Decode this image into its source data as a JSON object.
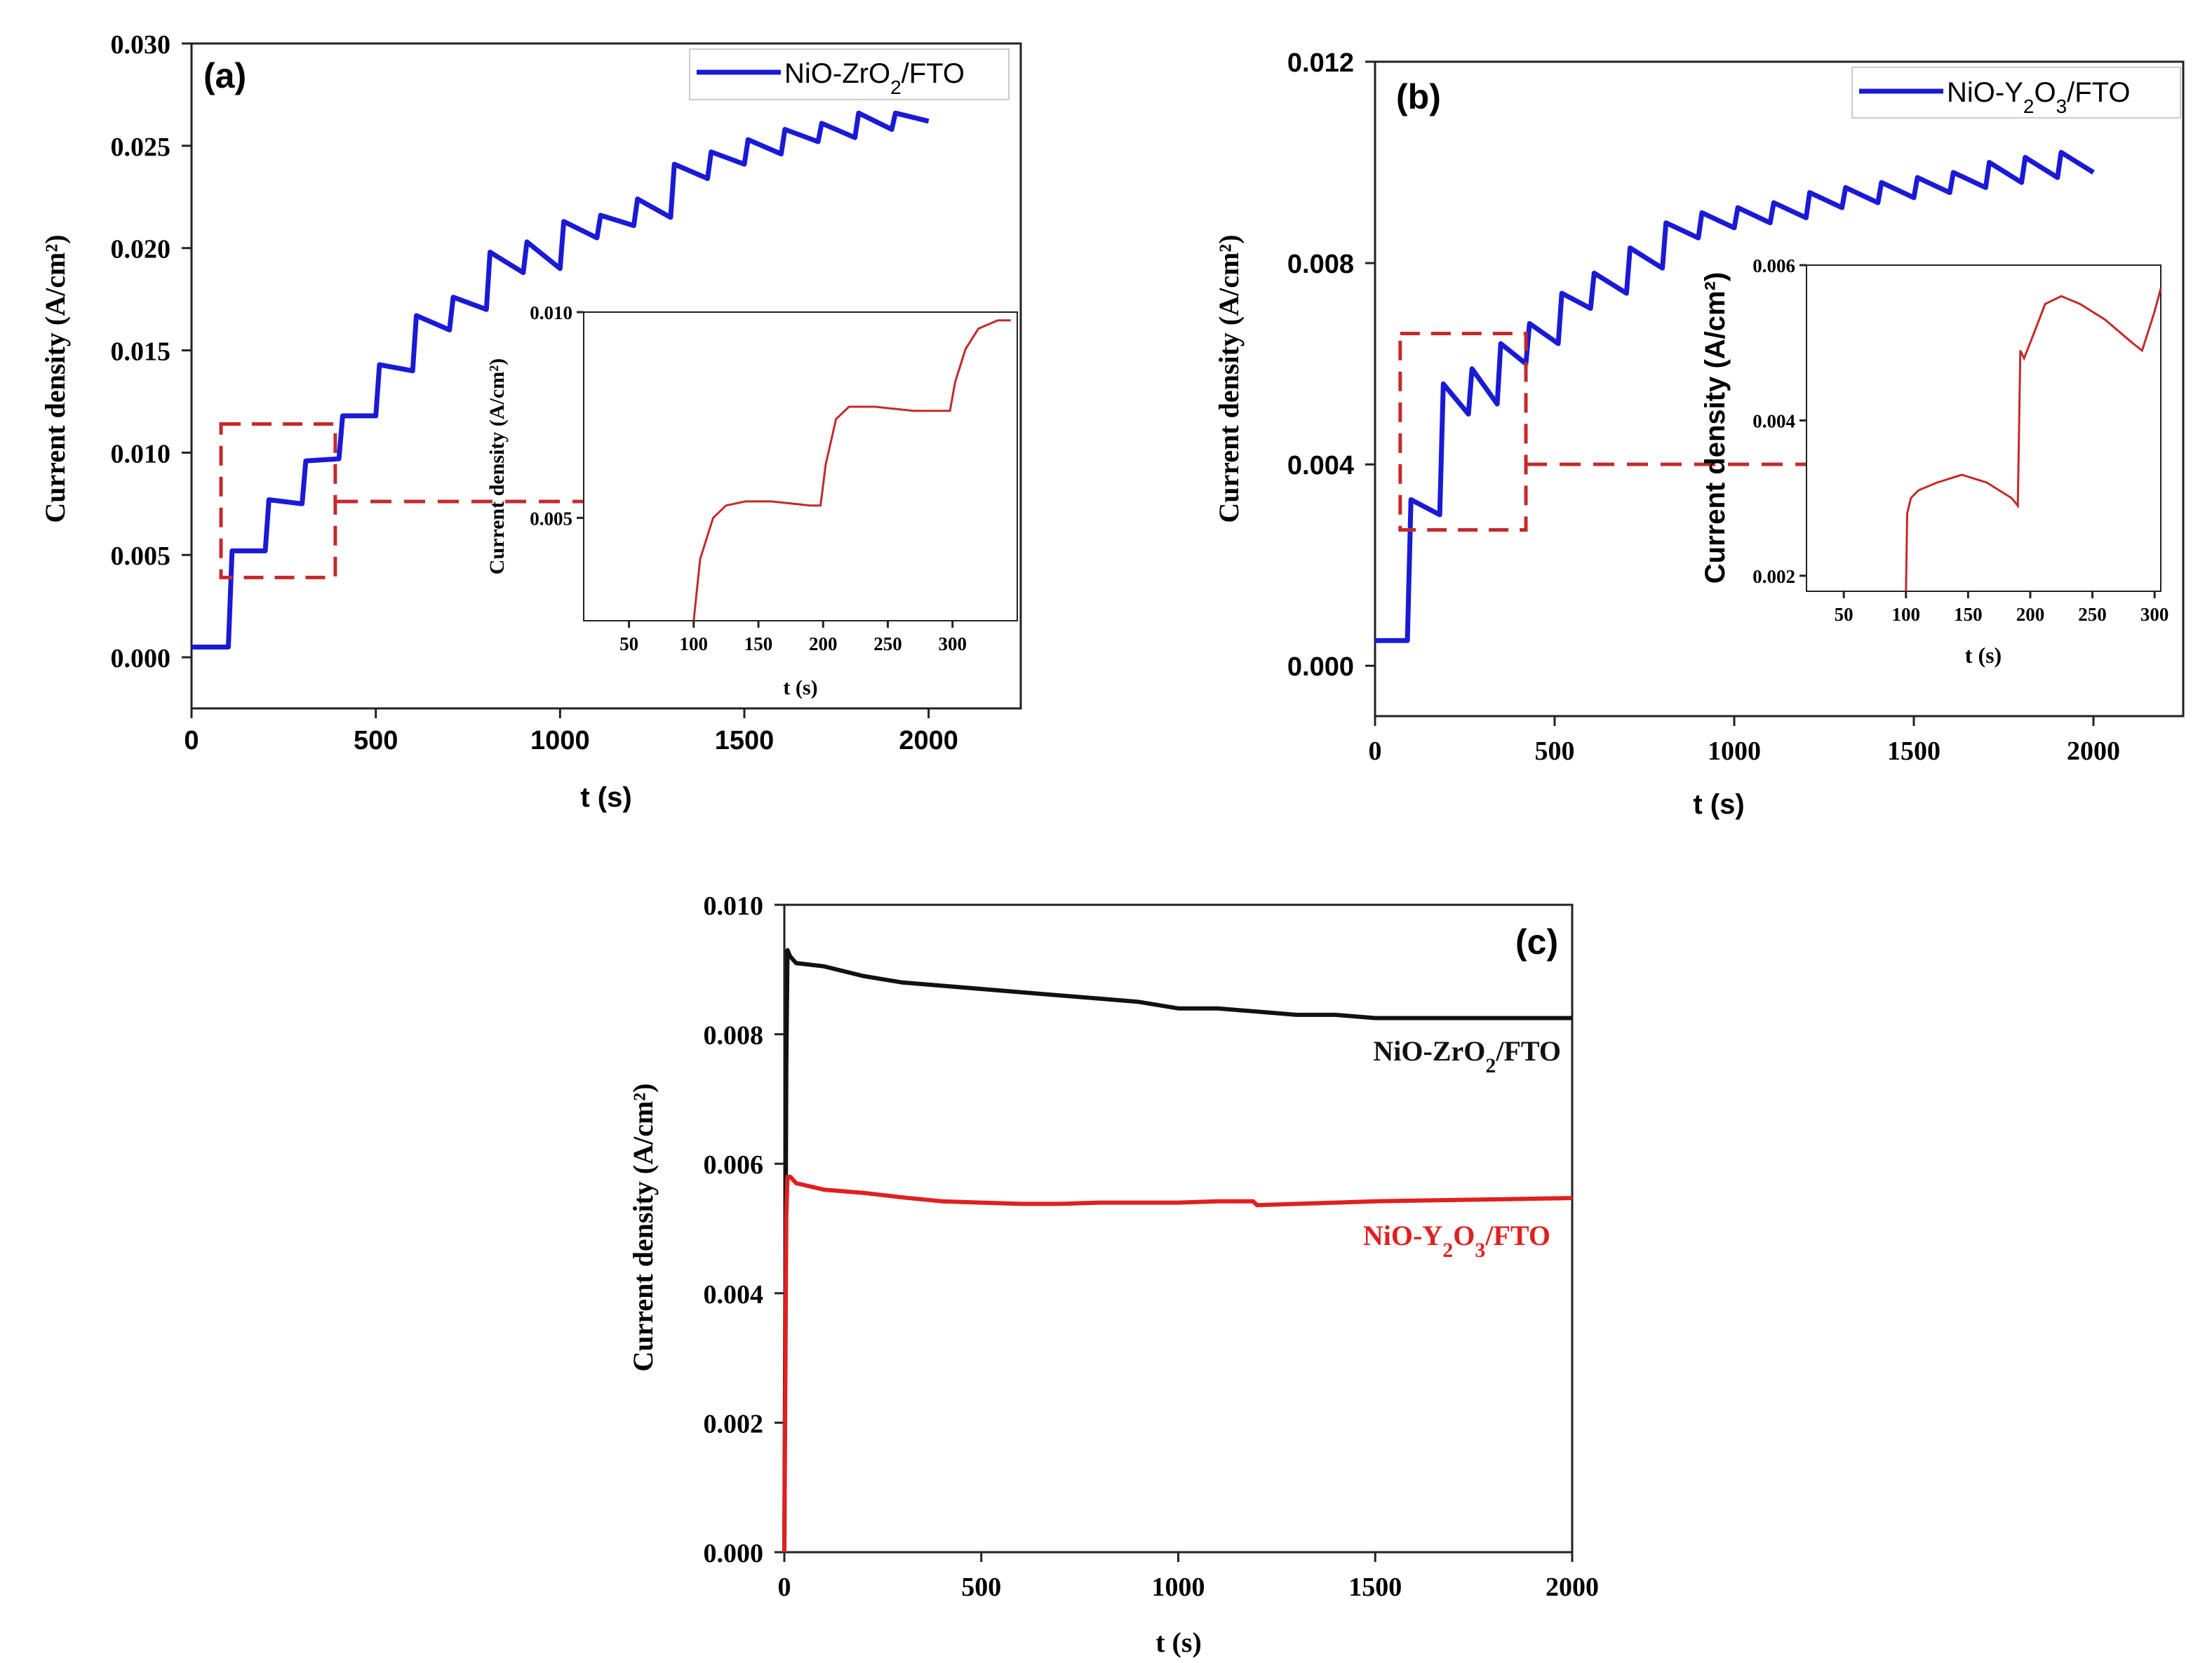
{
  "chart_data": [
    {
      "id": "a",
      "type": "line",
      "panel_label": "(a)",
      "xlabel": "t (s)",
      "ylabel": "Current density (A/cm²)",
      "xlim": [
        0,
        2250
      ],
      "ylim": [
        -0.0025,
        0.03
      ],
      "xticks": [
        "0",
        "500",
        "1000",
        "1500",
        "2000"
      ],
      "yticks": [
        "0.000",
        "0.005",
        "0.010",
        "0.015",
        "0.020",
        "0.025",
        "0.030"
      ],
      "legend": "top-right",
      "series": [
        {
          "name": "NiO-ZrO2/FTO",
          "name_main": "NiO-ZrO",
          "name_sub": "2",
          "name_tail": "/FTO",
          "color": "#1a1ad6",
          "x": [
            0,
            100,
            110,
            200,
            210,
            300,
            310,
            400,
            410,
            500,
            510,
            600,
            610,
            700,
            710,
            800,
            810,
            900,
            910,
            1000,
            1010,
            1100,
            1110,
            1200,
            1210,
            1300,
            1310,
            1400,
            1410,
            1500,
            1510,
            1600,
            1610,
            1700,
            1710,
            1800,
            1810,
            1900,
            1910,
            2000
          ],
          "y": [
            0.0005,
            0.0005,
            0.0052,
            0.0052,
            0.0077,
            0.0075,
            0.0096,
            0.0097,
            0.0118,
            0.0118,
            0.0143,
            0.014,
            0.0167,
            0.016,
            0.0176,
            0.017,
            0.0198,
            0.0188,
            0.0203,
            0.019,
            0.0213,
            0.0205,
            0.0216,
            0.0211,
            0.0224,
            0.0215,
            0.0241,
            0.0234,
            0.0247,
            0.0241,
            0.0253,
            0.0246,
            0.0258,
            0.0252,
            0.0261,
            0.0254,
            0.0266,
            0.0258,
            0.0266,
            0.0262
          ]
        }
      ],
      "zoom_box": {
        "x": [
          80,
          390
        ],
        "y": [
          0.0039,
          0.0114
        ]
      },
      "inset": {
        "xlabel": "t (s)",
        "ylabel": "Current density (A/cm²)",
        "xlim": [
          15,
          350
        ],
        "ylim": [
          0.0025,
          0.01
        ],
        "xticks": [
          "50",
          "100",
          "150",
          "200",
          "250",
          "300"
        ],
        "yticks": [
          "0.005",
          "0.010"
        ],
        "series": [
          {
            "color": "#c42a2a",
            "x": [
              100,
              105,
              115,
              125,
              140,
              160,
              190,
              198,
              202,
              210,
              220,
              240,
              270,
              298,
              302,
              310,
              320,
              335,
              345
            ],
            "y": [
              0.0025,
              0.004,
              0.005,
              0.0053,
              0.0054,
              0.0054,
              0.0053,
              0.0053,
              0.0063,
              0.0074,
              0.0077,
              0.0077,
              0.0076,
              0.0076,
              0.0083,
              0.0091,
              0.0096,
              0.0098,
              0.0098
            ]
          }
        ]
      }
    },
    {
      "id": "b",
      "type": "line",
      "panel_label": "(b)",
      "xlabel": "t (s)",
      "ylabel": "Current density (A/cm²)",
      "xlim": [
        0,
        2250
      ],
      "ylim": [
        -0.001,
        0.012
      ],
      "xticks": [
        "0",
        "500",
        "1000",
        "1500",
        "2000"
      ],
      "yticks": [
        "0.000",
        "0.004",
        "0.008",
        "0.012"
      ],
      "legend": "top-right",
      "series": [
        {
          "name": "NiO-Y2O3/FTO",
          "name_main": "NiO-Y",
          "name_sub": "2",
          "name_mid": "O",
          "name_sub2": "3",
          "name_tail": "/FTO",
          "color": "#1a1ad6",
          "x": [
            0,
            90,
            100,
            180,
            190,
            260,
            270,
            340,
            350,
            420,
            430,
            510,
            520,
            600,
            610,
            700,
            710,
            800,
            810,
            900,
            910,
            1000,
            1010,
            1100,
            1110,
            1200,
            1210,
            1300,
            1310,
            1400,
            1410,
            1500,
            1510,
            1600,
            1610,
            1700,
            1710,
            1800,
            1810,
            1900,
            1910,
            2000
          ],
          "y": [
            0.0005,
            0.0005,
            0.0033,
            0.003,
            0.0056,
            0.005,
            0.0059,
            0.0052,
            0.0064,
            0.006,
            0.0068,
            0.0064,
            0.0074,
            0.0071,
            0.0078,
            0.0074,
            0.0083,
            0.0079,
            0.0088,
            0.0085,
            0.009,
            0.0087,
            0.0091,
            0.0088,
            0.0092,
            0.0089,
            0.0094,
            0.0091,
            0.0095,
            0.0092,
            0.0096,
            0.0093,
            0.0097,
            0.0094,
            0.0098,
            0.0095,
            0.01,
            0.0096,
            0.0101,
            0.0097,
            0.0102,
            0.0098
          ]
        }
      ],
      "zoom_box": {
        "x": [
          70,
          420
        ],
        "y": [
          0.0027,
          0.0066
        ]
      },
      "inset": {
        "xlabel": "t (s)",
        "ylabel": "Current density (A/cm²)",
        "xlim": [
          20,
          305
        ],
        "ylim": [
          0.0018,
          0.006
        ],
        "xticks": [
          "50",
          "100",
          "150",
          "200",
          "250",
          "300"
        ],
        "yticks": [
          "0.002",
          "0.004",
          "0.006"
        ],
        "series": [
          {
            "color": "#c42a2a",
            "x": [
              100,
              101,
              104,
              110,
              125,
              145,
              165,
              185,
              190,
              192,
              195,
              200,
              212,
              225,
              240,
              260,
              282,
              290,
              300,
              305
            ],
            "y": [
              0.0018,
              0.0028,
              0.003,
              0.0031,
              0.0032,
              0.0033,
              0.0032,
              0.003,
              0.0029,
              0.0049,
              0.0048,
              0.005,
              0.0055,
              0.0056,
              0.0055,
              0.0053,
              0.005,
              0.0049,
              0.0054,
              0.0057
            ]
          }
        ]
      }
    },
    {
      "id": "c",
      "type": "line",
      "panel_label": "(c)",
      "xlabel": "t (s)",
      "ylabel": "Current density (A/cm²)",
      "xlim": [
        0,
        2000
      ],
      "ylim": [
        0,
        0.01
      ],
      "xticks": [
        "0",
        "500",
        "1000",
        "1500",
        "2000"
      ],
      "yticks": [
        "0.000",
        "0.002",
        "0.004",
        "0.006",
        "0.008",
        "0.010"
      ],
      "legend": "inline labels",
      "series": [
        {
          "name": "NiO-ZrO2/FTO",
          "name_main": "NiO-ZrO",
          "name_sub": "2",
          "name_tail": "/FTO",
          "color": "#111111",
          "x": [
            0,
            5,
            8,
            15,
            30,
            100,
            200,
            300,
            400,
            500,
            600,
            700,
            800,
            900,
            1000,
            1100,
            1200,
            1300,
            1400,
            1500,
            1600,
            1700,
            1800,
            1900,
            2000
          ],
          "y": [
            0.0,
            0.0075,
            0.0093,
            0.0092,
            0.0091,
            0.00905,
            0.0089,
            0.0088,
            0.00875,
            0.0087,
            0.00865,
            0.0086,
            0.00855,
            0.0085,
            0.0084,
            0.0084,
            0.00835,
            0.0083,
            0.0083,
            0.00825,
            0.00825,
            0.00825,
            0.00825,
            0.00825,
            0.00825
          ]
        },
        {
          "name": "NiO-Y2O3/FTO",
          "name_main": "NiO-Y",
          "name_sub": "2",
          "name_mid": "O",
          "name_sub2": "3",
          "name_tail": "/FTO",
          "color": "#e02020",
          "x": [
            0,
            5,
            8,
            15,
            30,
            100,
            200,
            300,
            400,
            500,
            600,
            700,
            800,
            900,
            1000,
            1100,
            1190,
            1200,
            1300,
            1400,
            1500,
            1600,
            1700,
            1800,
            1900,
            2000
          ],
          "y": [
            0.0,
            0.0052,
            0.0058,
            0.0058,
            0.0057,
            0.0056,
            0.00555,
            0.00548,
            0.00542,
            0.0054,
            0.00538,
            0.00538,
            0.0054,
            0.0054,
            0.0054,
            0.00542,
            0.00542,
            0.00536,
            0.00538,
            0.0054,
            0.00542,
            0.00543,
            0.00544,
            0.00545,
            0.00546,
            0.00547
          ]
        }
      ]
    }
  ]
}
